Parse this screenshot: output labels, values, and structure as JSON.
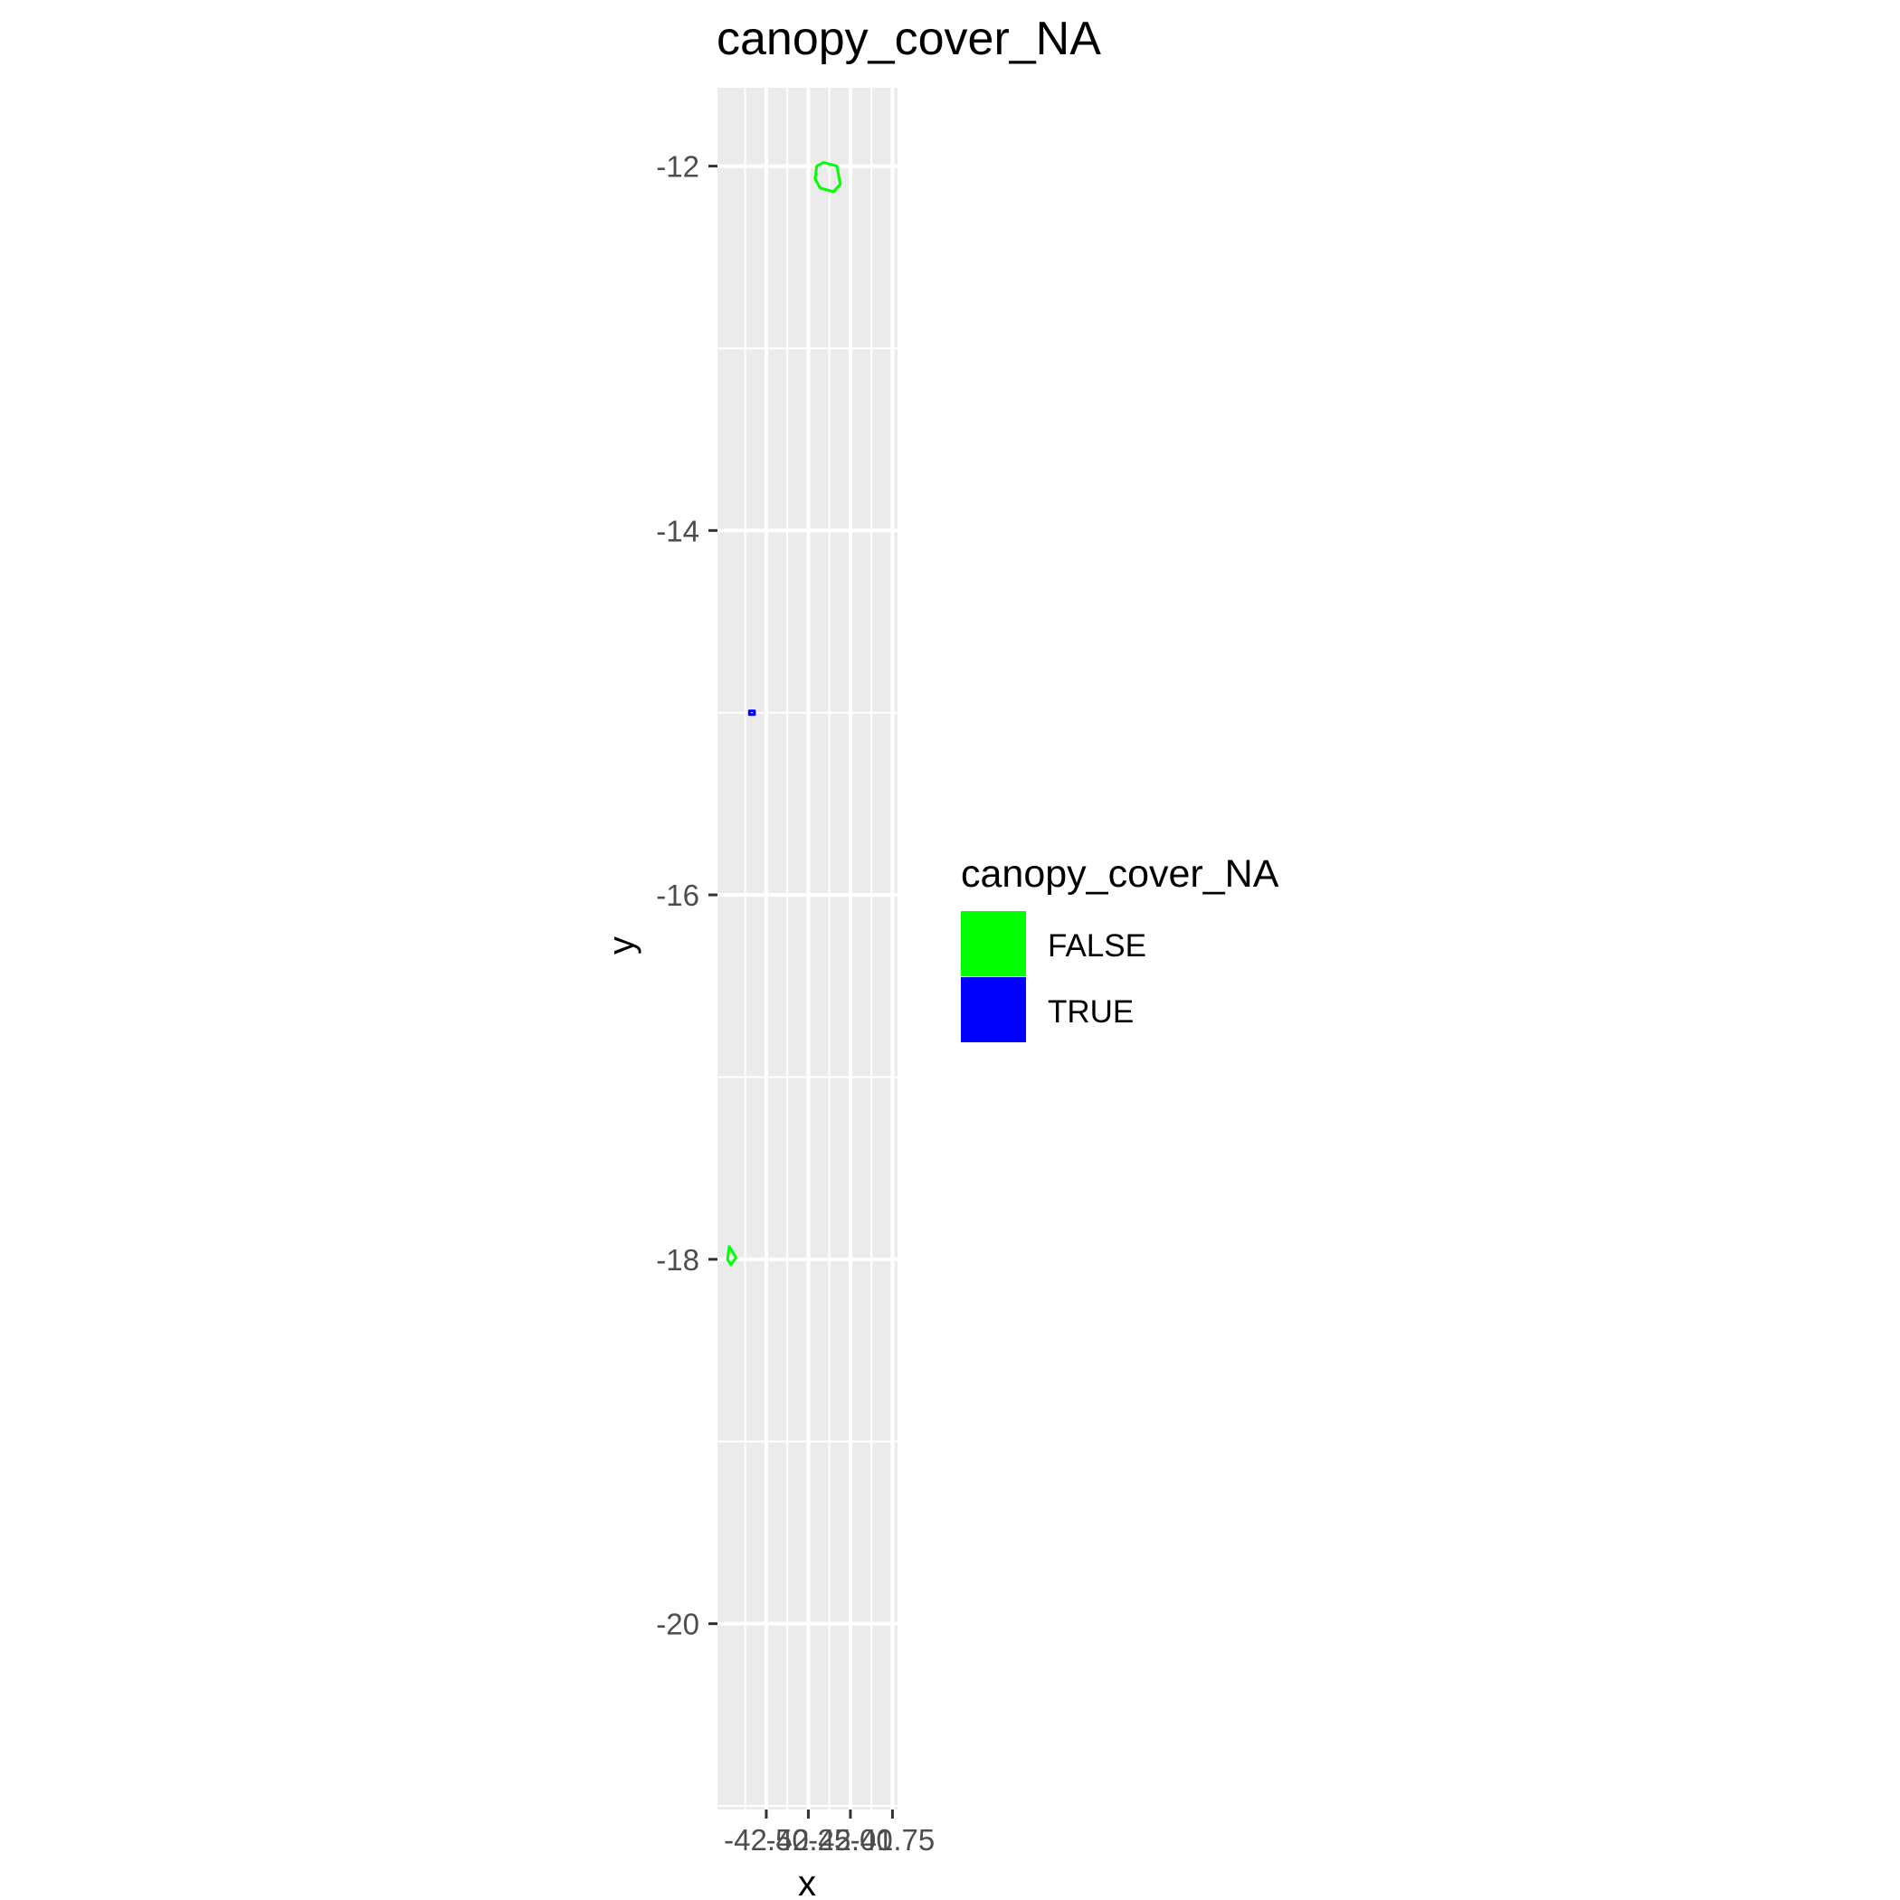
{
  "chart_data": {
    "type": "map",
    "title": "canopy_cover_NA",
    "xlabel": "x",
    "ylabel": "y",
    "xlim": [
      -42.79,
      -41.72
    ],
    "ylim": [
      -21.02,
      -11.57
    ],
    "x_ticks": [
      -42.5,
      -42.25,
      -42.0,
      -41.75
    ],
    "x_tick_labels": [
      "-42.50",
      "-42.25",
      "-42.00",
      "-41.75"
    ],
    "y_ticks": [
      -12,
      -14,
      -16,
      -18,
      -20
    ],
    "y_tick_labels": [
      "-12",
      "-14",
      "-16",
      "-18",
      "-20"
    ],
    "grid": true,
    "legend": {
      "title": "canopy_cover_NA",
      "placement": "right",
      "entries": [
        {
          "label": "FALSE",
          "color": "#00ff00"
        },
        {
          "label": "TRUE",
          "color": "#0000ff"
        }
      ]
    },
    "series": [
      {
        "name": "FALSE",
        "color": "#00ff00",
        "regions": [
          {
            "x": [
              -42.2,
              -42.16,
              -42.08,
              -42.06,
              -42.1,
              -42.18,
              -42.21,
              -42.2
            ],
            "y": [
              -12.0,
              -11.98,
              -12.0,
              -12.1,
              -12.14,
              -12.12,
              -12.07,
              -12.0
            ]
          },
          {
            "x": [
              -42.72,
              -42.7,
              -42.68,
              -42.71,
              -42.73,
              -42.72
            ],
            "y": [
              -17.93,
              -17.96,
              -17.99,
              -18.03,
              -18.0,
              -17.93
            ]
          }
        ]
      },
      {
        "name": "TRUE",
        "color": "#0000ff",
        "regions": [
          {
            "x": [
              -42.6,
              -42.57,
              -42.57,
              -42.6,
              -42.6
            ],
            "y": [
              -14.99,
              -14.99,
              -15.01,
              -15.01,
              -14.99
            ]
          }
        ]
      }
    ]
  }
}
